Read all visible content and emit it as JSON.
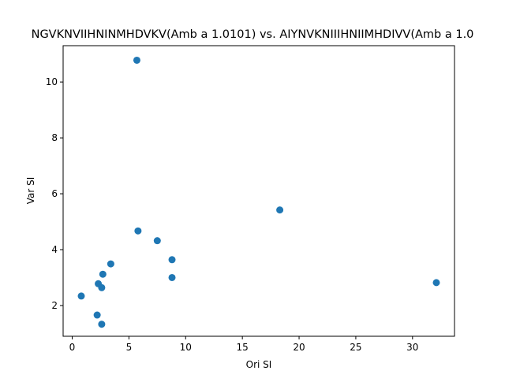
{
  "chart_data": {
    "type": "scatter",
    "title": "NGVKNVIIHNINMHDVKV(Amb a 1.0101) vs. AIYNVKNIIIHNIIMHDIVV(Amb a 1.0",
    "xlabel": "Ori SI",
    "ylabel": "Var SI",
    "xlim": [
      -0.8,
      33.7
    ],
    "ylim": [
      0.9,
      11.3
    ],
    "x_ticks": [
      0,
      5,
      10,
      15,
      20,
      25,
      30
    ],
    "y_ticks": [
      2,
      4,
      6,
      8,
      10
    ],
    "grid": false,
    "marker_color": "#1f77b4",
    "points": [
      {
        "x": 5.7,
        "y": 10.78
      },
      {
        "x": 18.3,
        "y": 5.42
      },
      {
        "x": 5.8,
        "y": 4.67
      },
      {
        "x": 7.5,
        "y": 4.32
      },
      {
        "x": 8.8,
        "y": 3.64
      },
      {
        "x": 3.4,
        "y": 3.49
      },
      {
        "x": 2.7,
        "y": 3.12
      },
      {
        "x": 8.8,
        "y": 3.0
      },
      {
        "x": 32.1,
        "y": 2.82
      },
      {
        "x": 2.3,
        "y": 2.78
      },
      {
        "x": 2.6,
        "y": 2.64
      },
      {
        "x": 0.8,
        "y": 2.34
      },
      {
        "x": 2.2,
        "y": 1.66
      },
      {
        "x": 2.6,
        "y": 1.33
      }
    ]
  }
}
